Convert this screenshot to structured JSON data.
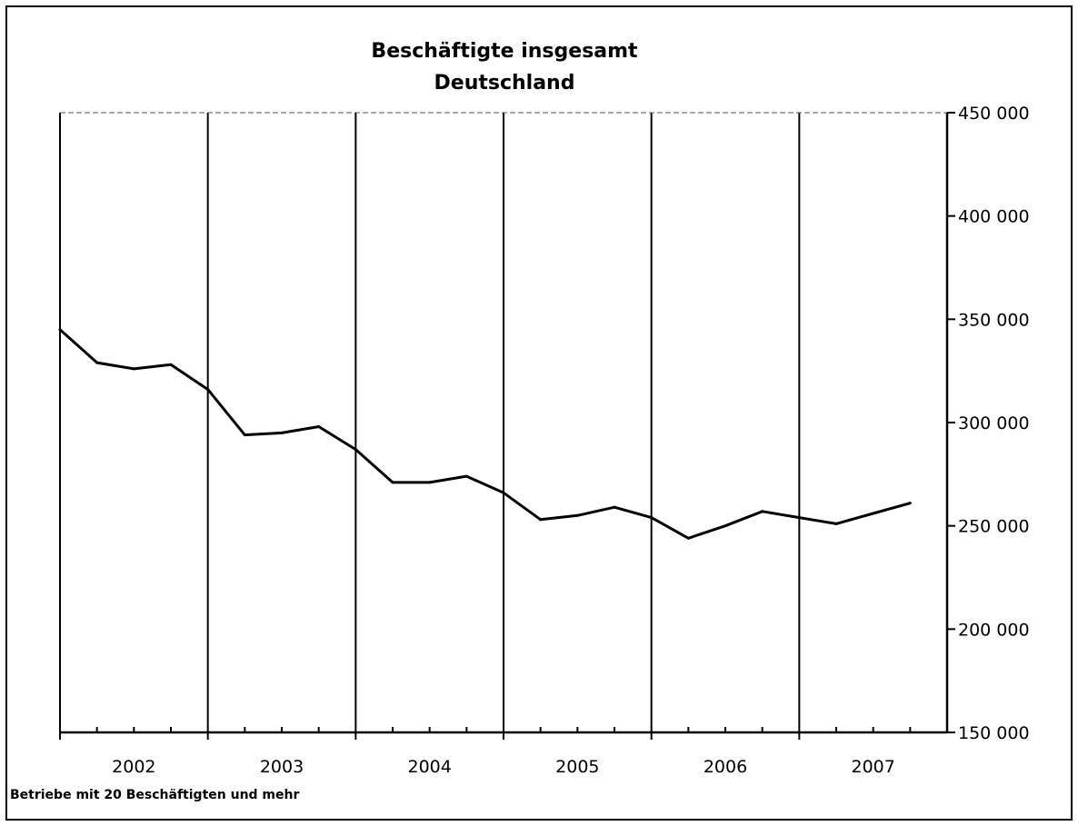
{
  "chart_data": {
    "type": "line",
    "title": "Beschäftigte insgesamt",
    "subtitle": "Deutschland",
    "footnote": "Betriebe mit 20 Beschäftigten und mehr",
    "xlabel": "",
    "ylabel": "",
    "ylim": [
      150000,
      450000
    ],
    "yticks": [
      150000,
      200000,
      250000,
      300000,
      350000,
      400000,
      450000
    ],
    "ytick_labels": [
      "150 000",
      "200 000",
      "250 000",
      "300 000",
      "350 000",
      "400 000",
      "450 000"
    ],
    "y_axis_position": "right",
    "years": [
      "2002",
      "2003",
      "2004",
      "2005",
      "2006",
      "2007"
    ],
    "periods_per_year": 4,
    "grid": "vertical lines between years",
    "legend": "none",
    "line_color": "#000000",
    "series": [
      {
        "values": [
          345000,
          329000,
          326000,
          328000,
          316000,
          294000,
          295000,
          298000,
          287000,
          271000,
          271000,
          274000,
          266000,
          253000,
          255000,
          259000,
          254000,
          244000,
          250000,
          257000,
          254000,
          251000,
          256000,
          261000
        ]
      }
    ]
  }
}
